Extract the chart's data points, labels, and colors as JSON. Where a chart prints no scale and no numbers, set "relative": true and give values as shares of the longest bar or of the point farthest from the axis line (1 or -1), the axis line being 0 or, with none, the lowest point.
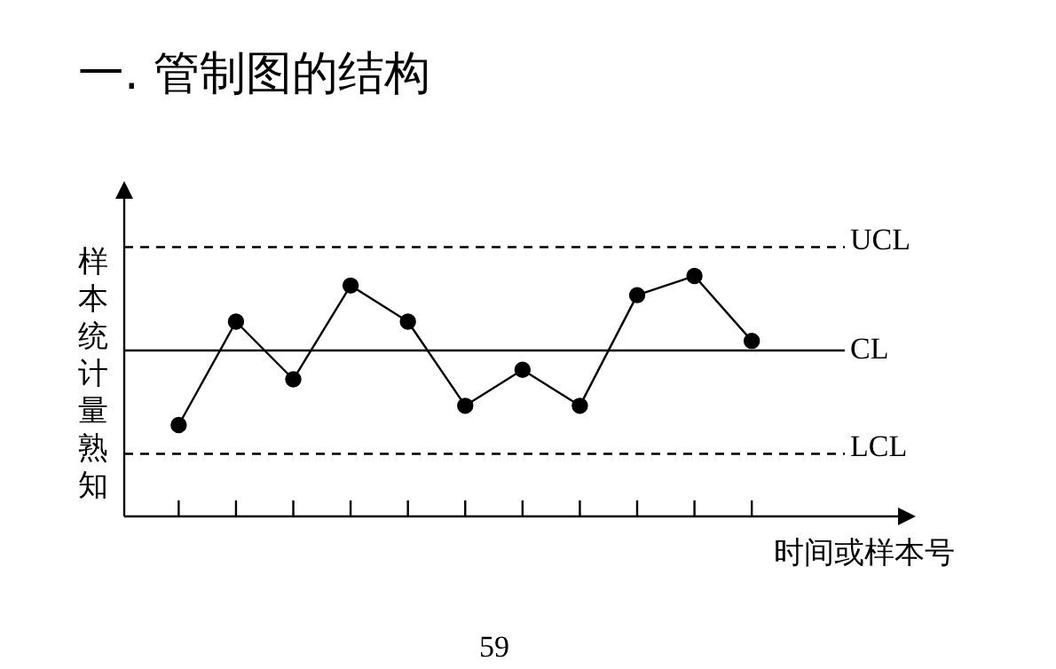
{
  "chart_data": {
    "type": "line",
    "title": "一. 管制图的结构",
    "ylabel": "样本统计量熟知",
    "xlabel": "时间或样本号",
    "relative": true,
    "categories": [
      null,
      null,
      null,
      null,
      null,
      null,
      null,
      null,
      null,
      null,
      null
    ],
    "series": [
      {
        "color": "#000000",
        "values": [
          0.38,
          0.81,
          0.57,
          0.96,
          0.81,
          0.46,
          0.61,
          0.46,
          0.92,
          1,
          0.73
        ]
      }
    ],
    "ref_lines": [
      {
        "axis": "y",
        "value": 1.12,
        "label": "UCL",
        "color": "#000000",
        "line_style": "dashed"
      },
      {
        "axis": "y",
        "value": 0.69,
        "label": "CL",
        "color": "#000000",
        "line_style": "solid"
      },
      {
        "axis": "y",
        "value": 0.26,
        "label": "LCL",
        "color": "#000000",
        "line_style": "dashed"
      }
    ],
    "annotations": [
      "59"
    ],
    "marker": "circle",
    "line_style": "solid",
    "legend": false
  }
}
